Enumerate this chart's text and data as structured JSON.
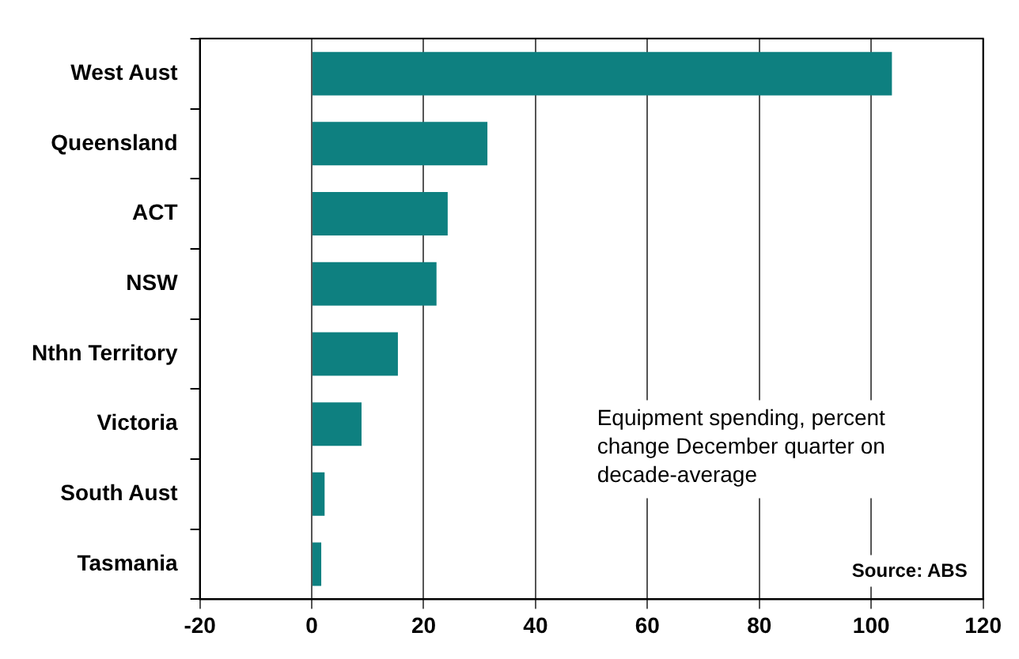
{
  "chart_data": {
    "type": "bar",
    "orientation": "horizontal",
    "categories": [
      "West Aust",
      "Queensland",
      "ACT",
      "NSW",
      "Nthn Territory",
      "Victoria",
      "South Aust",
      "Tasmania"
    ],
    "values": [
      103.7,
      31.4,
      24.3,
      22.3,
      15.4,
      8.9,
      2.3,
      1.7
    ],
    "color": "#0e8080",
    "xlim": [
      -20,
      120
    ],
    "xticks": [
      -20,
      0,
      20,
      40,
      60,
      80,
      100,
      120
    ],
    "grid": "x",
    "legend": false,
    "annotations": [
      "Equipment spending, percent change December quarter on decade-average",
      "Source: ABS"
    ]
  }
}
